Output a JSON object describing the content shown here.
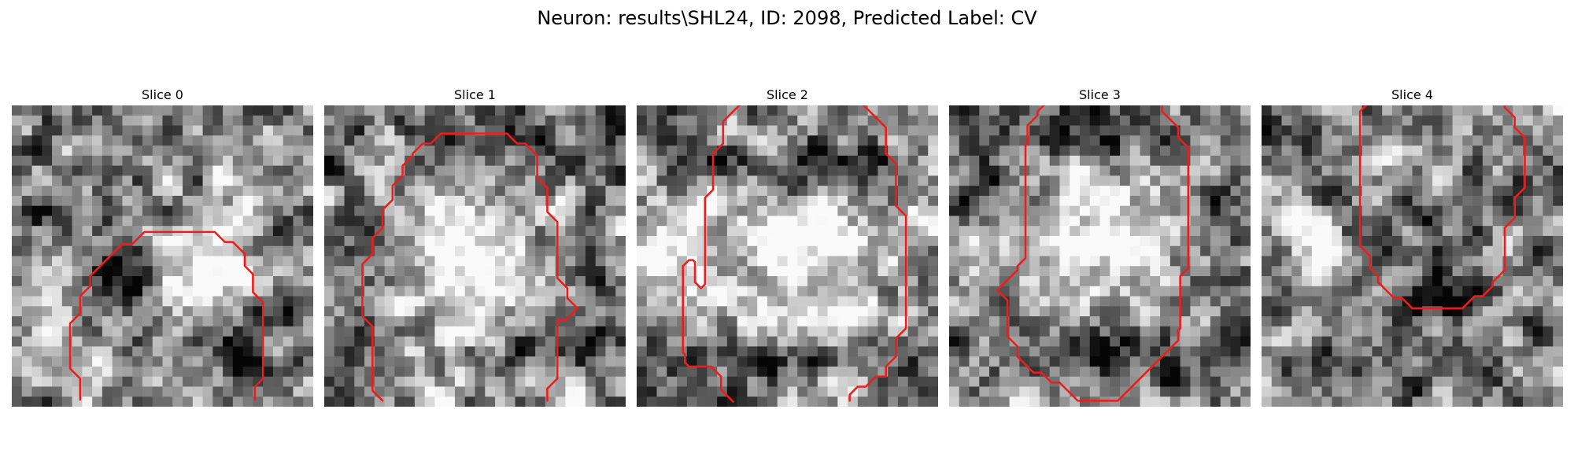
{
  "figure": {
    "title": "Neuron: results\\SHL24, ID: 2098, Predicted Label: CV"
  },
  "contour_color": "#ee1c1c",
  "grid_size": 30,
  "panels": [
    {
      "title": "Slice 0",
      "seed": 11,
      "blobs": [
        {
          "cx": 20,
          "cy": 15.5,
          "rx": 5.0,
          "ry": 4.0,
          "s": 0.55
        },
        {
          "cx": 11,
          "cy": 18,
          "rx": 3.0,
          "ry": 4.5,
          "s": -0.42
        },
        {
          "cx": 5,
          "cy": 11,
          "rx": 4.5,
          "ry": 2.0,
          "s": -0.38
        },
        {
          "cx": 22,
          "cy": 24,
          "rx": 3.5,
          "ry": 2.5,
          "s": -0.38
        },
        {
          "cx": 5,
          "cy": 25,
          "rx": 5.0,
          "ry": 4.0,
          "s": 0.25
        },
        {
          "cx": 25,
          "cy": 5,
          "rx": 4.0,
          "ry": 3.5,
          "s": 0.12
        },
        {
          "cx": 28,
          "cy": 21,
          "rx": 2.5,
          "ry": 2.0,
          "s": -0.32
        }
      ],
      "contours": [
        [
          [
            6.8,
            29.3
          ],
          [
            6.8,
            27.2
          ],
          [
            5.8,
            26.2
          ],
          [
            5.8,
            21.7
          ],
          [
            6.8,
            20.7
          ],
          [
            6.8,
            19.0
          ],
          [
            7.8,
            18.0
          ],
          [
            7.8,
            17.0
          ],
          [
            11,
            13.8
          ],
          [
            12,
            13.8
          ],
          [
            13.2,
            12.6
          ],
          [
            20.2,
            12.6
          ],
          [
            21.2,
            13.6
          ],
          [
            22,
            13.6
          ],
          [
            23.2,
            14.8
          ],
          [
            23.2,
            16.0
          ],
          [
            24,
            16.8
          ],
          [
            24,
            18.6
          ],
          [
            25,
            19.6
          ],
          [
            25,
            27.2
          ],
          [
            24.2,
            28
          ],
          [
            24.2,
            29.3
          ]
        ]
      ]
    },
    {
      "title": "Slice 1",
      "seed": 23,
      "blobs": [
        {
          "cx": 15,
          "cy": 15,
          "rx": 10.5,
          "ry": 8.0,
          "s": 0.42
        },
        {
          "cx": 15,
          "cy": 3.5,
          "rx": 11.0,
          "ry": 2.2,
          "s": -0.38
        },
        {
          "cx": 4,
          "cy": 16,
          "rx": 2.5,
          "ry": 8.0,
          "s": -0.35
        },
        {
          "cx": 24,
          "cy": 24,
          "rx": 5.5,
          "ry": 3.0,
          "s": -0.42
        },
        {
          "cx": 27,
          "cy": 16,
          "rx": 2.0,
          "ry": 5.0,
          "s": -0.3
        },
        {
          "cx": 10,
          "cy": 27,
          "rx": 6.0,
          "ry": 3.0,
          "s": 0.1
        },
        {
          "cx": 7,
          "cy": 3.5,
          "rx": 1.5,
          "ry": 1.2,
          "s": 0.55
        }
      ],
      "contours": [
        [
          [
            5.8,
            29.4
          ],
          [
            4.8,
            28.4
          ],
          [
            4.8,
            22.0
          ],
          [
            3.8,
            21.0
          ],
          [
            3.8,
            15.8
          ],
          [
            4.8,
            14.8
          ],
          [
            4.8,
            13.2
          ],
          [
            5.8,
            12.2
          ],
          [
            5.8,
            10.4
          ],
          [
            6.8,
            9.4
          ],
          [
            6.8,
            8.0
          ],
          [
            7.8,
            7.0
          ],
          [
            7.8,
            6.0
          ],
          [
            8.8,
            5.0
          ],
          [
            8.8,
            4.8
          ],
          [
            9.8,
            3.8
          ],
          [
            10.6,
            3.8
          ],
          [
            11.6,
            2.8
          ],
          [
            18.2,
            2.8
          ],
          [
            19.2,
            3.8
          ],
          [
            20.0,
            3.8
          ],
          [
            21.2,
            5.0
          ],
          [
            21.2,
            7.2
          ],
          [
            22.2,
            8.2
          ],
          [
            22.2,
            10.6
          ],
          [
            23.2,
            11.6
          ],
          [
            23.2,
            17.2
          ],
          [
            24.2,
            18.2
          ],
          [
            24.2,
            19.2
          ],
          [
            25.2,
            20.2
          ],
          [
            24.0,
            21.4
          ],
          [
            23.2,
            21.4
          ],
          [
            23.2,
            27.2
          ],
          [
            22.2,
            28.2
          ],
          [
            22.2,
            29.4
          ]
        ]
      ]
    },
    {
      "title": "Slice 2",
      "seed": 37,
      "blobs": [
        {
          "cx": 16,
          "cy": 15,
          "rx": 11.0,
          "ry": 7.5,
          "s": 0.45
        },
        {
          "cx": 17,
          "cy": 6,
          "rx": 10.0,
          "ry": 2.2,
          "s": -0.42
        },
        {
          "cx": 15,
          "cy": 25.5,
          "rx": 9.0,
          "ry": 2.5,
          "s": -0.32
        },
        {
          "cx": 3,
          "cy": 14,
          "rx": 2.5,
          "ry": 5.0,
          "s": 0.25
        },
        {
          "cx": 3,
          "cy": 26,
          "rx": 3.0,
          "ry": 3.0,
          "s": -0.18
        },
        {
          "cx": 28,
          "cy": 26,
          "rx": 2.5,
          "ry": 3.0,
          "s": -0.22
        }
      ],
      "contours": [
        [
          [
            9.6,
            29.5
          ],
          [
            8.4,
            28.3
          ],
          [
            8.4,
            27.0
          ],
          [
            7.4,
            26.0
          ],
          [
            5.2,
            26.0
          ],
          [
            4.8,
            25.6
          ],
          [
            4.8,
            24.8
          ],
          [
            4.6,
            24.6
          ],
          [
            4.6,
            16.0
          ],
          [
            5.2,
            15.4
          ],
          [
            5.6,
            15.4
          ],
          [
            5.8,
            15.6
          ],
          [
            5.8,
            17.6
          ],
          [
            6.4,
            18.2
          ],
          [
            6.8,
            17.8
          ],
          [
            6.8,
            9.2
          ],
          [
            7.6,
            8.4
          ],
          [
            7.6,
            4.8
          ],
          [
            8.6,
            3.8
          ],
          [
            8.6,
            1.6
          ],
          [
            10.6,
            -0.4
          ]
        ],
        [
          [
            22.2,
            -0.4
          ],
          [
            24.8,
            2.2
          ],
          [
            24.8,
            4.8
          ],
          [
            25.8,
            5.8
          ],
          [
            25.8,
            10.0
          ],
          [
            26.8,
            11.0
          ],
          [
            26.8,
            22.2
          ],
          [
            25.8,
            23.2
          ],
          [
            25.8,
            25.0
          ],
          [
            24.8,
            26.0
          ],
          [
            24.8,
            27.0
          ],
          [
            23.8,
            27.0
          ],
          [
            22.8,
            28.0
          ],
          [
            22.0,
            28.0
          ],
          [
            21.2,
            28.8
          ],
          [
            21.2,
            29.4
          ]
        ]
      ]
    },
    {
      "title": "Slice 3",
      "seed": 53,
      "blobs": [
        {
          "cx": 15,
          "cy": 14,
          "rx": 9.0,
          "ry": 7.5,
          "s": 0.48
        },
        {
          "cx": 15,
          "cy": 3.5,
          "rx": 9.0,
          "ry": 2.0,
          "s": -0.38
        },
        {
          "cx": 15,
          "cy": 24.5,
          "rx": 9.5,
          "ry": 2.8,
          "s": -0.42
        },
        {
          "cx": 3,
          "cy": 10,
          "rx": 2.5,
          "ry": 3.5,
          "s": -0.32
        },
        {
          "cx": 27,
          "cy": 13,
          "rx": 2.5,
          "ry": 6.0,
          "s": -0.38
        },
        {
          "cx": 3,
          "cy": 16,
          "rx": 2.5,
          "ry": 2.5,
          "s": 0.25
        }
      ],
      "contours": [
        [
          [
            9.8,
            -0.4
          ],
          [
            8.8,
            0.6
          ],
          [
            8.8,
            1.0
          ],
          [
            7.8,
            2.0
          ],
          [
            7.8,
            3.8
          ],
          [
            7.6,
            4.0
          ],
          [
            7.6,
            15.2
          ],
          [
            6.8,
            16.0
          ],
          [
            6.8,
            16.4
          ],
          [
            4.8,
            18.4
          ],
          [
            5.8,
            19.4
          ],
          [
            5.8,
            23.0
          ],
          [
            6.8,
            24.0
          ],
          [
            6.8,
            25.0
          ],
          [
            8.4,
            26.6
          ],
          [
            9.2,
            26.6
          ],
          [
            10.2,
            27.6
          ],
          [
            11.0,
            27.6
          ],
          [
            12.8,
            29.4
          ],
          [
            16.8,
            29.4
          ],
          [
            21.8,
            24.4
          ],
          [
            22.8,
            23.4
          ],
          [
            22.8,
            22.4
          ],
          [
            23.0,
            22.2
          ],
          [
            23.0,
            17.0
          ],
          [
            23.8,
            16.2
          ],
          [
            23.8,
            4.2
          ],
          [
            22.8,
            3.2
          ],
          [
            22.8,
            2.2
          ],
          [
            21.2,
            0.6
          ],
          [
            21.2,
            -0.4
          ]
        ]
      ]
    },
    {
      "title": "Slice 4",
      "seed": 71,
      "blobs": [
        {
          "cx": 19,
          "cy": 16,
          "rx": 4.0,
          "ry": 5.5,
          "s": -0.38
        },
        {
          "cx": 15.5,
          "cy": 20,
          "rx": 6.0,
          "ry": 2.5,
          "s": -0.2
        },
        {
          "cx": 4,
          "cy": 13,
          "rx": 3.0,
          "ry": 3.0,
          "s": 0.25
        },
        {
          "cx": 24,
          "cy": 22,
          "rx": 3.0,
          "ry": 3.0,
          "s": 0.15
        },
        {
          "cx": 24.5,
          "cy": 14,
          "rx": 2.0,
          "ry": 2.0,
          "s": 0.35
        },
        {
          "cx": 15,
          "cy": 26,
          "rx": 10.0,
          "ry": 2.5,
          "s": -0.12
        }
      ],
      "contours": [
        [
          [
            10.8,
            -0.4
          ],
          [
            9.8,
            0.6
          ],
          [
            9.8,
            14.0
          ],
          [
            10.8,
            15.0
          ],
          [
            10.8,
            16.2
          ],
          [
            11.6,
            17.0
          ],
          [
            11.6,
            17.6
          ],
          [
            13.2,
            19.2
          ],
          [
            14.0,
            19.2
          ],
          [
            15.0,
            20.2
          ],
          [
            20.0,
            20.2
          ],
          [
            21.2,
            19.0
          ],
          [
            22.0,
            19.0
          ],
          [
            23.0,
            18.0
          ],
          [
            23.0,
            17.6
          ],
          [
            24.2,
            16.4
          ],
          [
            24.2,
            12.2
          ],
          [
            25.2,
            11.2
          ],
          [
            25.2,
            9.2
          ],
          [
            26.2,
            8.2
          ],
          [
            26.2,
            3.2
          ],
          [
            25.2,
            2.2
          ],
          [
            25.2,
            1.2
          ],
          [
            24.2,
            0.2
          ],
          [
            24.2,
            -0.4
          ]
        ]
      ]
    }
  ]
}
